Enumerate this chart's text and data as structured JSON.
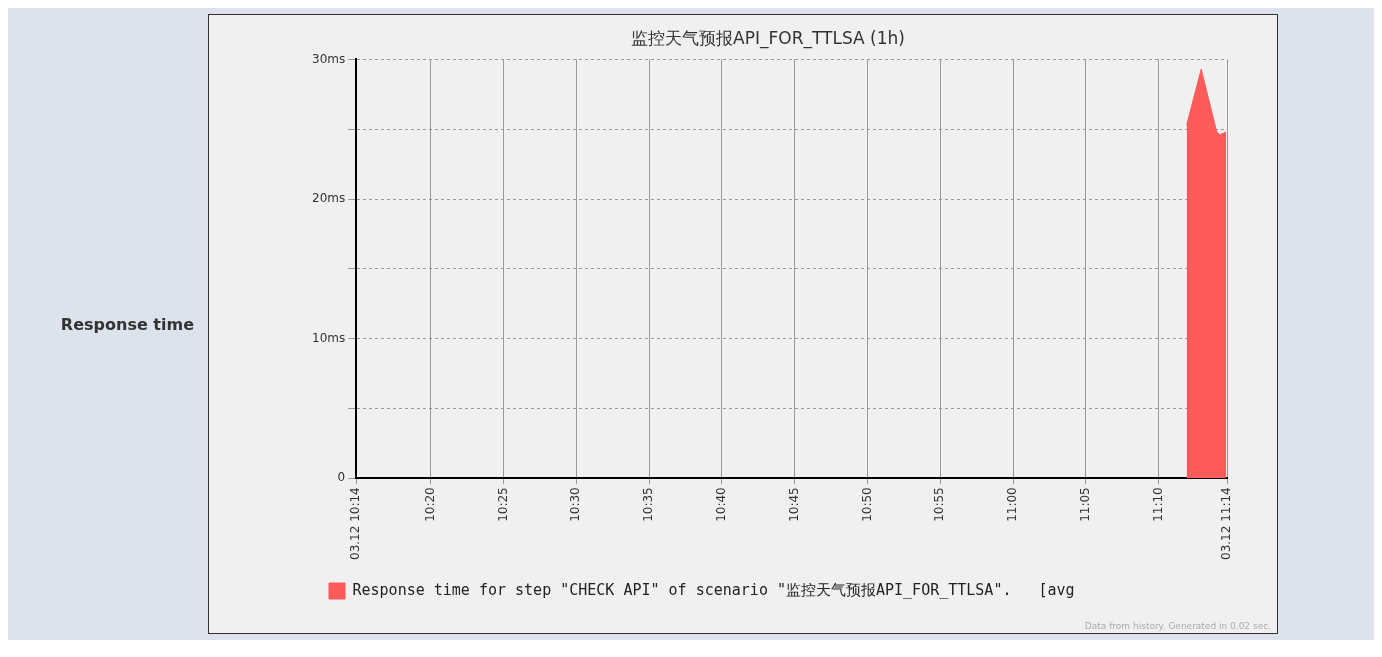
{
  "chart_data": {
    "type": "area",
    "title": "监控天气预报API_FOR_TTLSA (1h)",
    "x": [
      11.1988,
      11.2155,
      11.2333,
      11.2369,
      11.244
    ],
    "series": [
      {
        "name": "Response time for step \"CHECK API\" of scenario \"监控天气预报API_FOR_TTLSA\".   [avg",
        "color": "#ff5b5b",
        "values": [
          25.3,
          29.3,
          24.8,
          24.6,
          24.8
        ]
      }
    ],
    "xlim": [
      10.248,
      11.245
    ],
    "xticks": [
      {
        "value": 10.248,
        "label": "03.12 10:14"
      },
      {
        "value": 10.3333,
        "label": "10:20"
      },
      {
        "value": 10.4167,
        "label": "10:25"
      },
      {
        "value": 10.5,
        "label": "10:30"
      },
      {
        "value": 10.5833,
        "label": "10:35"
      },
      {
        "value": 10.6667,
        "label": "10:40"
      },
      {
        "value": 10.75,
        "label": "10:45"
      },
      {
        "value": 10.8333,
        "label": "10:50"
      },
      {
        "value": 10.9167,
        "label": "10:55"
      },
      {
        "value": 11,
        "label": "11:00"
      },
      {
        "value": 11.0833,
        "label": "11:05"
      },
      {
        "value": 11.1667,
        "label": "11:10"
      },
      {
        "value": 11.245,
        "label": "03.12 11:14"
      }
    ],
    "ylim": [
      0,
      30
    ],
    "yticks": [
      {
        "value": 0,
        "label": "0"
      },
      {
        "value": 5,
        "label": null
      },
      {
        "value": 10,
        "label": "10ms"
      },
      {
        "value": 15,
        "label": null
      },
      {
        "value": 20,
        "label": "20ms"
      },
      {
        "value": 25,
        "label": null
      },
      {
        "value": 30,
        "label": "30ms"
      }
    ],
    "grid": true,
    "legend": "bottom",
    "annotations": [
      "Response time",
      "Data from history. Generated in 0.02 sec."
    ]
  }
}
